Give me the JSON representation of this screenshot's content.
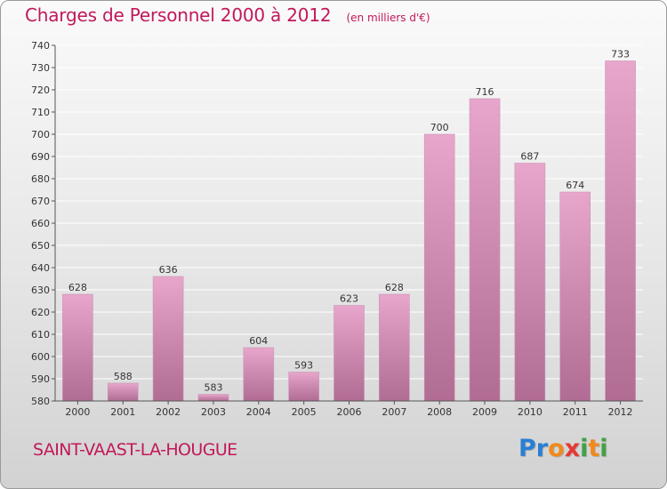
{
  "header": {
    "title": "Charges de Personnel 2000 à 2012",
    "subtitle": "(en milliers d'€)"
  },
  "footer": {
    "place": "SAINT-VAAST-LA-HOUGUE",
    "brand": "Proxiti",
    "brand_letters": [
      {
        "char": "P",
        "color": "#2a7fd4"
      },
      {
        "char": "r",
        "color": "#2a7fd4"
      },
      {
        "char": "o",
        "color": "#f08a1c"
      },
      {
        "char": "x",
        "color": "#e53935"
      },
      {
        "char": "i",
        "color": "#43a047"
      },
      {
        "char": "t",
        "color": "#f08a1c"
      },
      {
        "char": "i",
        "color": "#43a047"
      }
    ]
  },
  "colors": {
    "title": "#c2185b",
    "bar_top": "#e8a6cc",
    "bar_bottom": "#b06c93",
    "grid": "#ffffff",
    "text": "#333333"
  },
  "chart_data": {
    "type": "bar",
    "categories": [
      "2000",
      "2001",
      "2002",
      "2003",
      "2004",
      "2005",
      "2006",
      "2007",
      "2008",
      "2009",
      "2010",
      "2011",
      "2012"
    ],
    "values": [
      628,
      588,
      636,
      583,
      604,
      593,
      623,
      628,
      700,
      716,
      687,
      674,
      733
    ],
    "data_labels": [
      "628",
      "588",
      "636",
      "583",
      "604",
      "593",
      "623",
      "628",
      "700",
      "716",
      "687",
      "674",
      "733"
    ],
    "ylim": [
      580,
      740
    ],
    "yticks": [
      "580",
      "590",
      "600",
      "610",
      "620",
      "630",
      "640",
      "650",
      "660",
      "670",
      "680",
      "690",
      "700",
      "710",
      "720",
      "730",
      "740"
    ],
    "grid": true,
    "xlabel": "",
    "ylabel": ""
  }
}
